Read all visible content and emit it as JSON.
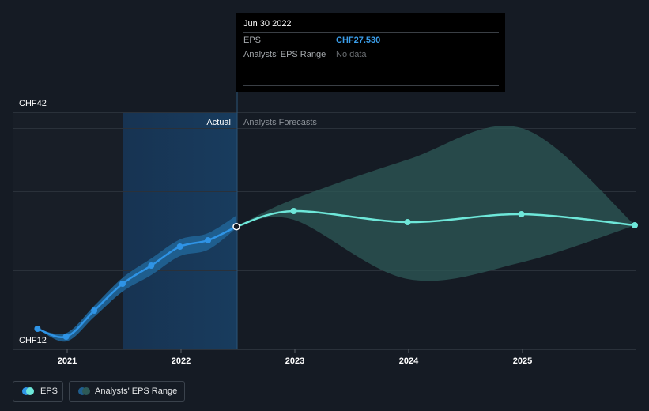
{
  "tooltip": {
    "date": "Jun 30 2022",
    "eps_label": "EPS",
    "eps_value": "CHF27.530",
    "range_label": "Analysts' EPS Range",
    "range_value": "No data"
  },
  "legend": {
    "eps_label": "EPS",
    "range_label": "Analysts' EPS Range"
  },
  "colors": {
    "background": "#151b24",
    "eps_line": "#2f94e6",
    "forecast_line": "#6ee7d9",
    "forecast_band": "#2e5a57",
    "actual_band": "#1e5c8a",
    "tooltip_bg": "#000000"
  },
  "chart_data": {
    "type": "line",
    "x_ticks": [
      "2021",
      "2022",
      "2023",
      "2024",
      "2025"
    ],
    "y_labels": [
      "CHF42",
      "CHF12"
    ],
    "ylim": [
      12,
      42
    ],
    "region_labels": {
      "actual": "Actual",
      "forecast": "Analysts Forecasts"
    },
    "series": [
      {
        "name": "EPS",
        "kind": "actual",
        "x": [
          "2020-09-30",
          "2020-12-31",
          "2021-03-31",
          "2021-06-30",
          "2021-09-30",
          "2021-12-31",
          "2022-03-31",
          "2022-06-30"
        ],
        "values": [
          14.6,
          13.6,
          16.9,
          20.3,
          22.6,
          25.0,
          25.8,
          27.53
        ]
      },
      {
        "name": "EPS",
        "kind": "forecast",
        "x": [
          "2022-06-30",
          "2022-12-31",
          "2023-12-31",
          "2024-12-31",
          "2025-12-31"
        ],
        "values": [
          27.53,
          29.5,
          28.1,
          29.1,
          27.7
        ]
      },
      {
        "name": "Analysts' EPS Range",
        "kind": "forecast_range",
        "x": [
          "2022-06-30",
          "2022-12-31",
          "2023-12-31",
          "2024-12-31",
          "2025-12-31"
        ],
        "high": [
          27.53,
          31.0,
          36.0,
          40.0,
          27.7
        ],
        "low": [
          27.53,
          28.4,
          20.9,
          23.0,
          27.7
        ]
      }
    ],
    "grid": true,
    "legend_position": "bottom-left"
  }
}
